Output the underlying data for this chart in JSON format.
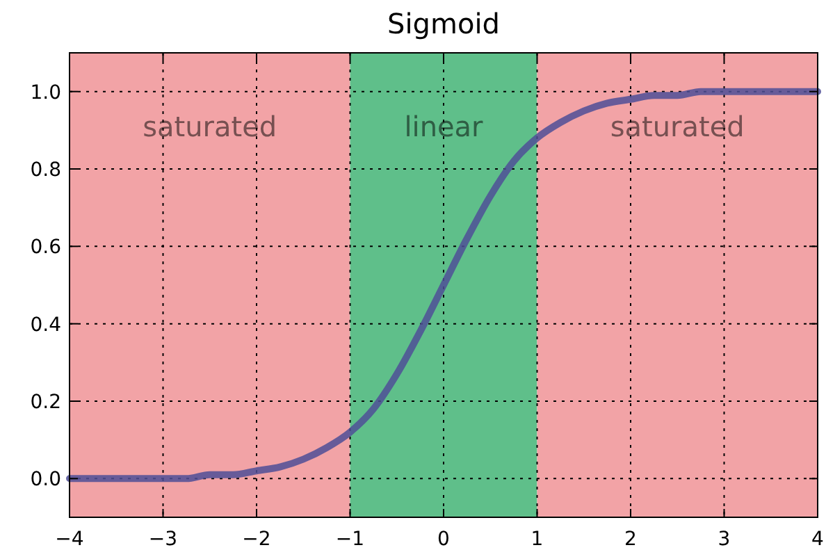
{
  "chart_data": {
    "type": "line",
    "title": "Sigmoid",
    "x": [
      -4,
      -3.75,
      -3.5,
      -3.25,
      -3,
      -2.75,
      -2.5,
      -2.25,
      -2,
      -1.75,
      -1.5,
      -1.25,
      -1,
      -0.75,
      -0.5,
      -0.25,
      0,
      0.25,
      0.5,
      0.75,
      1,
      1.25,
      1.5,
      1.75,
      2,
      2.25,
      2.5,
      2.75,
      3,
      3.25,
      3.5,
      3.75,
      4
    ],
    "series": [
      {
        "color": "#4f4f96",
        "values": [
          0.0,
          0.0,
          0.0,
          0.0,
          0.0,
          0.0,
          0.01,
          0.01,
          0.02,
          0.03,
          0.05,
          0.08,
          0.12,
          0.18,
          0.27,
          0.38,
          0.5,
          0.62,
          0.73,
          0.82,
          0.88,
          0.92,
          0.95,
          0.97,
          0.98,
          0.99,
          0.99,
          1.0,
          1.0,
          1.0,
          1.0,
          1.0,
          1.0
        ]
      }
    ],
    "xlim": [
      -4,
      4
    ],
    "xticks": [
      {
        "value": -4,
        "label": "−4"
      },
      {
        "value": -3,
        "label": "−3"
      },
      {
        "value": -2,
        "label": "−2"
      },
      {
        "value": -1,
        "label": "−1"
      },
      0,
      1,
      2,
      3,
      4
    ],
    "ylim": [
      -0.1,
      1.1
    ],
    "yticks": [
      {
        "value": 0,
        "label": "0.0"
      },
      {
        "value": 0.2,
        "label": "0.2"
      },
      {
        "value": 0.4,
        "label": "0.4"
      },
      {
        "value": 0.6,
        "label": "0.6"
      },
      {
        "value": 0.8,
        "label": "0.8"
      },
      {
        "value": 1,
        "label": "1.0"
      }
    ],
    "grid": true,
    "line_style": "solid",
    "marker": "none",
    "bands": [
      {
        "axis": "x",
        "from": -4,
        "to": -1,
        "label": "saturated",
        "color": "#f2a3a6"
      },
      {
        "axis": "x",
        "from": -1,
        "to": 1,
        "label": "linear",
        "color": "#5fbf8a"
      },
      {
        "axis": "x",
        "from": 1,
        "to": 4,
        "label": "saturated",
        "color": "#f2a3a6"
      }
    ]
  }
}
